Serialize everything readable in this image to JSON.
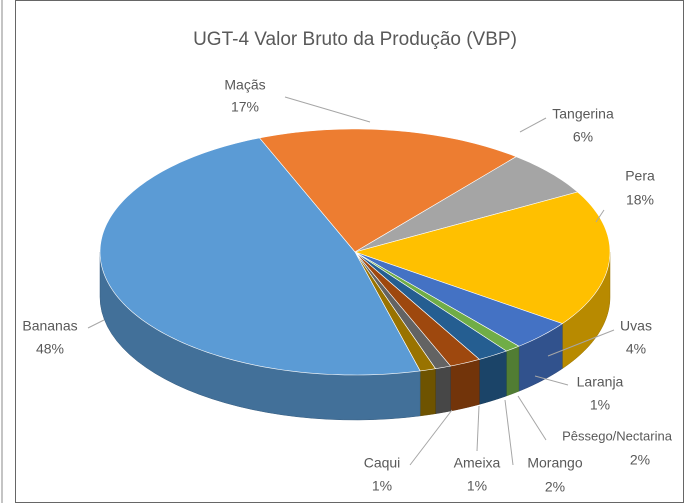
{
  "chart_data": {
    "type": "pie",
    "title": "UGT-4 Valor Bruto da Produção (VBP)",
    "categories": [
      "Maçãs",
      "Tangerina",
      "Pera",
      "Uvas",
      "Laranja",
      "Pêssego/Nectarina",
      "Morango",
      "Ameixa",
      "Caqui",
      "Bananas"
    ],
    "values": [
      17,
      6,
      18,
      4,
      1,
      2,
      2,
      1,
      1,
      48
    ],
    "value_labels": [
      "17%",
      "6%",
      "18%",
      "4%",
      "1%",
      "2%",
      "2%",
      "1%",
      "1%",
      "48%"
    ],
    "colors": [
      "#ed7d31",
      "#a5a5a5",
      "#ffc000",
      "#4472c4",
      "#70ad47",
      "#255e91",
      "#9e480e",
      "#636363",
      "#997300",
      "#5b9bd5"
    ]
  }
}
